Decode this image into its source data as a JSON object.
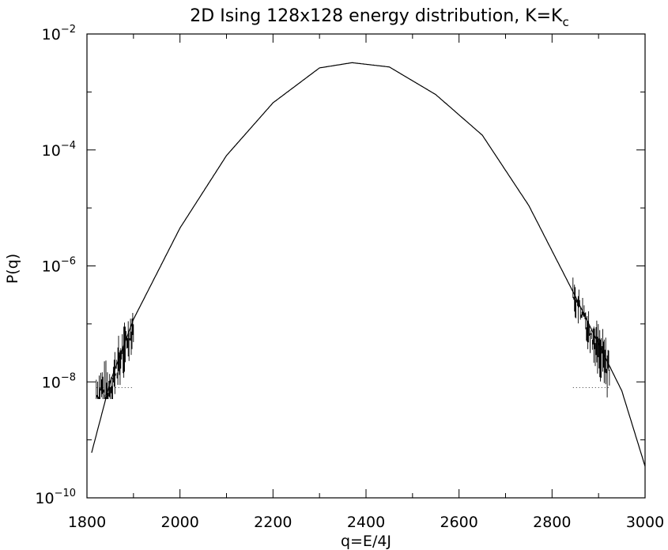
{
  "chart_data": {
    "type": "line",
    "title": "2D Ising 128x128 energy distribution, K=K",
    "title_subscript": "c",
    "xlabel": "q=E/4J",
    "ylabel": "P(q)",
    "xlim": [
      1800,
      3000
    ],
    "ylim": [
      1e-10,
      0.01
    ],
    "yscale": "log",
    "grid": false,
    "legend": "none",
    "x_ticks": [
      1800,
      2000,
      2200,
      2400,
      2600,
      2800,
      3000
    ],
    "x_tick_labels": [
      "1800",
      "2000",
      "2200",
      "2400",
      "2600",
      "2800",
      "3000"
    ],
    "y_ticks": [
      -10,
      -8,
      -6,
      -4,
      -2
    ],
    "y_tick_base": "10",
    "y_tick_exponents": [
      "−10",
      "−8",
      "−6",
      "−4",
      "−2"
    ],
    "series": [
      {
        "kind": "fit-curve",
        "x": [
          1810,
          1850,
          1900,
          2000,
          2100,
          2200,
          2300,
          2370,
          2450,
          2550,
          2650,
          2750,
          2850,
          2900,
          2950,
          3000
        ],
        "y": [
          6e-10,
          1e-08,
          1.2e-07,
          4.5e-06,
          8e-05,
          0.00065,
          0.0026,
          0.0032,
          0.0027,
          0.0009,
          0.00018,
          1.1e-05,
          3e-07,
          4.5e-08,
          7e-09,
          3.5e-10
        ]
      },
      {
        "kind": "histogram-noisy",
        "x_ranges": [
          [
            1820,
            1900
          ],
          [
            2845,
            2925
          ]
        ],
        "floor": 8e-09
      }
    ],
    "colors": {
      "line": "#000000",
      "axis": "#000000",
      "background": "#ffffff"
    }
  }
}
